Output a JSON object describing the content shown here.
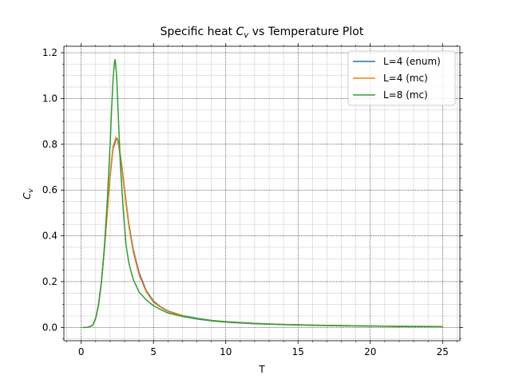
{
  "chart_data": {
    "type": "line",
    "title": "Specific heat",
    "title_symbol": "C",
    "title_symbol_sub": "v",
    "title_suffix": "vs Temperature Plot",
    "xlabel": "T",
    "ylabel_symbol": "C",
    "ylabel_sub": "v",
    "xlim": [
      -1.2,
      26.2
    ],
    "ylim": [
      -0.058,
      1.228
    ],
    "xticks": [
      0,
      5,
      10,
      15,
      20,
      25
    ],
    "xtick_labels": [
      "0",
      "5",
      "10",
      "15",
      "20",
      "25"
    ],
    "yticks": [
      0.0,
      0.2,
      0.4,
      0.6,
      0.8,
      1.0,
      1.2
    ],
    "ytick_labels": [
      "0.0",
      "0.2",
      "0.4",
      "0.6",
      "0.8",
      "1.0",
      "1.2"
    ],
    "grid": true,
    "legend_position": "upper right",
    "series": [
      {
        "name": "L=4 (enum)",
        "color": "#1f77b4",
        "x": [
          0.1,
          0.5,
          0.8,
          1.0,
          1.2,
          1.4,
          1.6,
          1.8,
          2.0,
          2.2,
          2.4,
          2.5,
          2.6,
          2.8,
          3.0,
          3.3,
          3.6,
          4.0,
          4.5,
          5.0,
          5.5,
          6.0,
          7.0,
          8.0,
          9.0,
          10.0,
          12.0,
          14.0,
          16.0,
          18.0,
          20.0,
          22.0,
          25.0
        ],
        "y": [
          0.0,
          0.001,
          0.01,
          0.04,
          0.1,
          0.2,
          0.34,
          0.5,
          0.66,
          0.78,
          0.82,
          0.825,
          0.8,
          0.71,
          0.6,
          0.45,
          0.34,
          0.24,
          0.16,
          0.115,
          0.09,
          0.072,
          0.052,
          0.04,
          0.031,
          0.025,
          0.018,
          0.013,
          0.01,
          0.008,
          0.006,
          0.005,
          0.004
        ]
      },
      {
        "name": "L=4 (mc)",
        "color": "#ff7f0e",
        "x": [
          0.1,
          0.5,
          0.8,
          1.0,
          1.2,
          1.4,
          1.6,
          1.8,
          2.0,
          2.2,
          2.3,
          2.4,
          2.5,
          2.6,
          2.8,
          3.0,
          3.3,
          3.6,
          4.0,
          4.5,
          5.0,
          5.5,
          6.0,
          7.0,
          8.0,
          9.0,
          10.0,
          12.0,
          14.0,
          16.0,
          18.0,
          20.0,
          22.0,
          25.0
        ],
        "y": [
          0.0,
          0.001,
          0.01,
          0.04,
          0.1,
          0.2,
          0.34,
          0.5,
          0.67,
          0.79,
          0.81,
          0.83,
          0.82,
          0.79,
          0.7,
          0.59,
          0.44,
          0.33,
          0.23,
          0.155,
          0.11,
          0.088,
          0.07,
          0.05,
          0.038,
          0.03,
          0.024,
          0.017,
          0.013,
          0.01,
          0.008,
          0.006,
          0.005,
          0.004
        ]
      },
      {
        "name": "L=8 (mc)",
        "color": "#2ca02c",
        "x": [
          0.1,
          0.5,
          0.8,
          1.0,
          1.2,
          1.4,
          1.6,
          1.8,
          2.0,
          2.1,
          2.2,
          2.3,
          2.35,
          2.45,
          2.55,
          2.7,
          2.9,
          3.1,
          3.3,
          3.6,
          4.0,
          4.5,
          5.0,
          5.5,
          6.0,
          7.0,
          8.0,
          9.0,
          10.0,
          12.0,
          14.0,
          16.0,
          18.0,
          20.0,
          22.0,
          25.0
        ],
        "y": [
          0.0,
          0.001,
          0.01,
          0.04,
          0.1,
          0.2,
          0.35,
          0.55,
          0.8,
          0.95,
          1.08,
          1.16,
          1.17,
          1.1,
          0.95,
          0.72,
          0.52,
          0.36,
          0.28,
          0.21,
          0.155,
          0.12,
          0.095,
          0.078,
          0.063,
          0.048,
          0.037,
          0.029,
          0.023,
          0.016,
          0.012,
          0.009,
          0.007,
          0.006,
          0.004,
          0.003
        ]
      }
    ]
  }
}
